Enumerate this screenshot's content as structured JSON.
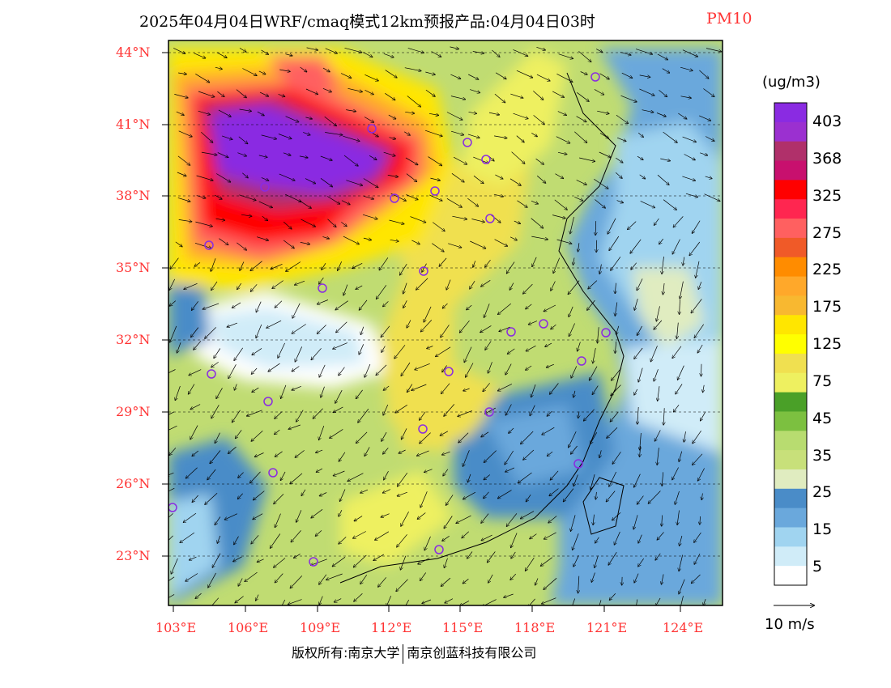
{
  "title": {
    "main": "2025年04月04日WRF/cmaq模式12km预报产品:04月04日03时",
    "pollutant": "PM10"
  },
  "lat_labels": [
    "44°N",
    "41°N",
    "38°N",
    "35°N",
    "32°N",
    "29°N",
    "26°N",
    "23°N"
  ],
  "lon_labels": [
    "103°E",
    "106°E",
    "109°E",
    "112°E",
    "115°E",
    "118°E",
    "121°E",
    "124°E"
  ],
  "legend": {
    "unit": "(ug/m3)",
    "labels": [
      "403",
      "368",
      "325",
      "275",
      "225",
      "175",
      "125",
      "75",
      "45",
      "35",
      "25",
      "15",
      "5"
    ],
    "colors": [
      "#8a2be2",
      "#9b30d0",
      "#b0306a",
      "#c8106e",
      "#ff0000",
      "#ff2650",
      "#ff6060",
      "#f05a28",
      "#ff8c00",
      "#ffa82a",
      "#f8b830",
      "#ffe600",
      "#ffff00",
      "#f0e050",
      "#eef060",
      "#4aa028",
      "#7cc040",
      "#b8dc70",
      "#c8e07a",
      "#e0ecc0",
      "#4a8cc8",
      "#6aa8dc",
      "#a0d4f0",
      "#d0ecf8",
      "#ffffff"
    ]
  },
  "vector_label": "10 m/s",
  "copyright": {
    "left": "版权所有:南京大学",
    "right": "南京创蓝科技有限公司"
  },
  "colors": {
    "axis_label": "#ff3333",
    "station_marker": "#8a2be2"
  }
}
